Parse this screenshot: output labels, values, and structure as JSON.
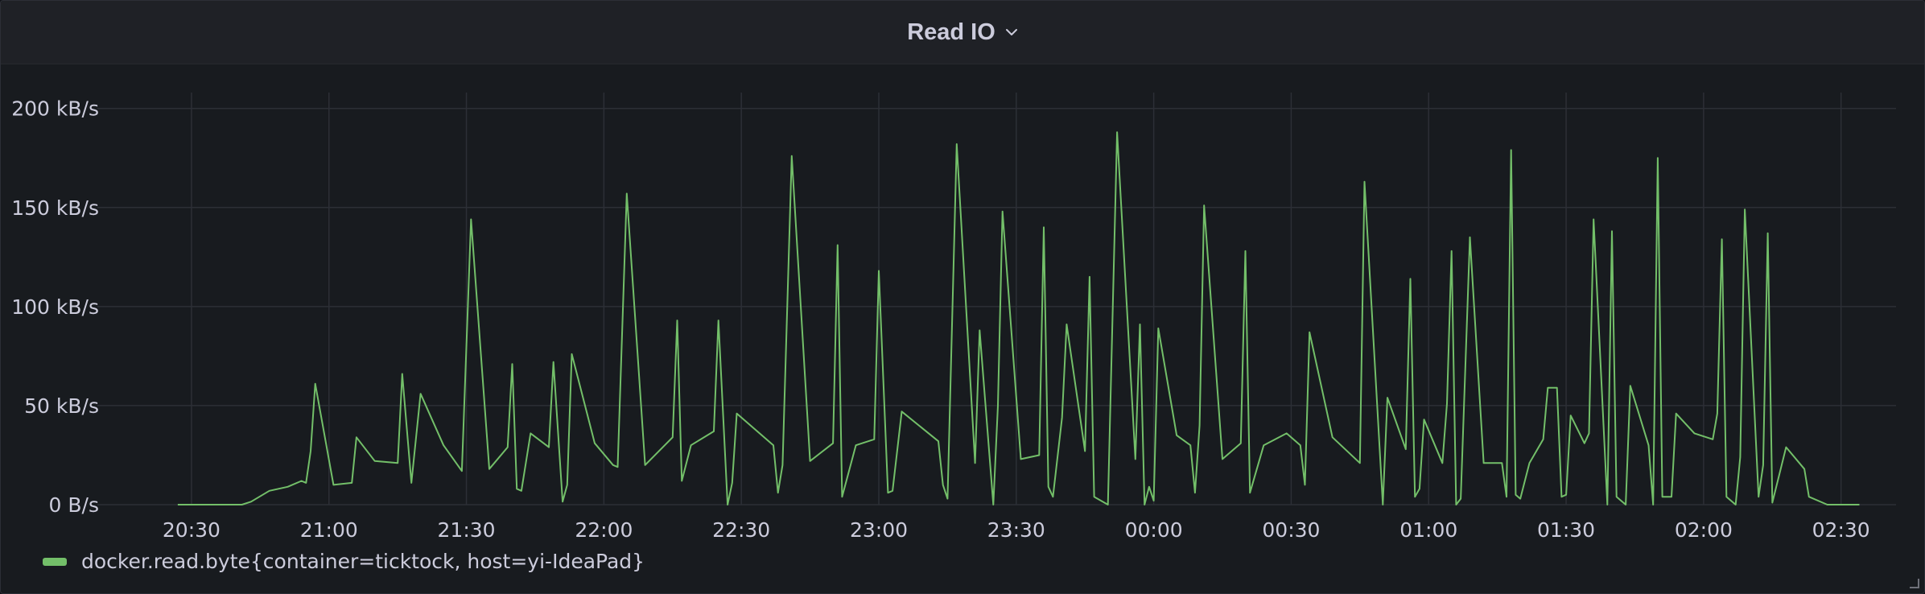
{
  "panel": {
    "title": "Read IO",
    "menu_icon": "chevron-down-icon",
    "colors": {
      "background": "#181b1f",
      "header": "#1f2126",
      "text": "#ccccdc",
      "grid": "#2c2f36",
      "series": "#73bf69"
    }
  },
  "chart_data": {
    "type": "line",
    "title": "Read IO",
    "xlabel": "",
    "ylabel": "",
    "x_unit": "time (HH:MM)",
    "y_unit": "kB/s",
    "xlim": [
      "20:20",
      "02:42"
    ],
    "ylim": [
      0,
      208
    ],
    "grid": true,
    "legend_position": "bottom-left",
    "y_ticks": [
      {
        "value": 0,
        "label": "0 B/s"
      },
      {
        "value": 50,
        "label": "50 kB/s"
      },
      {
        "value": 100,
        "label": "100 kB/s"
      },
      {
        "value": 150,
        "label": "150 kB/s"
      },
      {
        "value": 200,
        "label": "200 kB/s"
      }
    ],
    "x_ticks": [
      "20:30",
      "21:00",
      "21:30",
      "22:00",
      "22:30",
      "23:00",
      "23:30",
      "00:00",
      "00:30",
      "01:00",
      "01:30",
      "02:00",
      "02:30"
    ],
    "series": [
      {
        "name": "docker.read.byte{container=ticktock, host=yi-IdeaPad}",
        "color": "#73bf69",
        "points": [
          [
            "20:27",
            0
          ],
          [
            "20:31",
            0
          ],
          [
            "20:38",
            0
          ],
          [
            "20:41",
            0
          ],
          [
            "20:43",
            1.5
          ],
          [
            "20:47",
            7
          ],
          [
            "20:51",
            9
          ],
          [
            "20:54",
            12
          ],
          [
            "20:55",
            11
          ],
          [
            "20:56",
            27
          ],
          [
            "20:57",
            61
          ],
          [
            "21:01",
            10
          ],
          [
            "21:05",
            11
          ],
          [
            "21:06",
            34
          ],
          [
            "21:10",
            22
          ],
          [
            "21:15",
            21
          ],
          [
            "21:16",
            66
          ],
          [
            "21:18",
            11
          ],
          [
            "21:20",
            56
          ],
          [
            "21:25",
            30
          ],
          [
            "21:29",
            17
          ],
          [
            "21:31",
            144
          ],
          [
            "21:35",
            18
          ],
          [
            "21:39",
            29
          ],
          [
            "21:40",
            71
          ],
          [
            "21:41",
            8
          ],
          [
            "21:42",
            7
          ],
          [
            "21:44",
            36
          ],
          [
            "21:48",
            29
          ],
          [
            "21:49",
            72
          ],
          [
            "21:51",
            1.5
          ],
          [
            "21:52",
            10
          ],
          [
            "21:53",
            76
          ],
          [
            "21:58",
            31
          ],
          [
            "22:02",
            20
          ],
          [
            "22:03",
            19
          ],
          [
            "22:05",
            157
          ],
          [
            "22:09",
            20
          ],
          [
            "22:15",
            34
          ],
          [
            "22:16",
            93
          ],
          [
            "22:17",
            12
          ],
          [
            "22:19",
            30
          ],
          [
            "22:24",
            37
          ],
          [
            "22:25",
            93
          ],
          [
            "22:27",
            0
          ],
          [
            "22:28",
            11
          ],
          [
            "22:29",
            46
          ],
          [
            "22:37",
            30
          ],
          [
            "22:38",
            6
          ],
          [
            "22:39",
            20
          ],
          [
            "22:41",
            176
          ],
          [
            "22:45",
            22
          ],
          [
            "22:50",
            31
          ],
          [
            "22:51",
            131
          ],
          [
            "22:52",
            4
          ],
          [
            "22:55",
            30
          ],
          [
            "22:59",
            33
          ],
          [
            "23:00",
            118
          ],
          [
            "23:02",
            6
          ],
          [
            "23:03",
            7
          ],
          [
            "23:05",
            47
          ],
          [
            "23:13",
            32
          ],
          [
            "23:14",
            10
          ],
          [
            "23:15",
            3
          ],
          [
            "23:17",
            182
          ],
          [
            "23:21",
            21
          ],
          [
            "23:22",
            88
          ],
          [
            "23:25",
            0
          ],
          [
            "23:26",
            50
          ],
          [
            "23:27",
            148
          ],
          [
            "23:31",
            23
          ],
          [
            "23:35",
            25
          ],
          [
            "23:36",
            140
          ],
          [
            "23:37",
            9
          ],
          [
            "23:38",
            4
          ],
          [
            "23:40",
            44
          ],
          [
            "23:41",
            91
          ],
          [
            "23:45",
            27
          ],
          [
            "23:46",
            115
          ],
          [
            "23:47",
            4
          ],
          [
            "23:50",
            0
          ],
          [
            "23:52",
            188
          ],
          [
            "23:56",
            23
          ],
          [
            "23:57",
            91
          ],
          [
            "23:58",
            0
          ],
          [
            "23:59",
            9
          ],
          [
            "24:00",
            2
          ],
          [
            "24:01",
            89
          ],
          [
            "24:05",
            35
          ],
          [
            "24:08",
            30
          ],
          [
            "24:09",
            6
          ],
          [
            "24:10",
            40
          ],
          [
            "24:11",
            151
          ],
          [
            "24:15",
            23
          ],
          [
            "24:19",
            31
          ],
          [
            "24:20",
            128
          ],
          [
            "24:21",
            6
          ],
          [
            "24:24",
            30
          ],
          [
            "24:29",
            36
          ],
          [
            "24:32",
            30
          ],
          [
            "24:33",
            10
          ],
          [
            "24:34",
            87
          ],
          [
            "24:39",
            34
          ],
          [
            "24:45",
            21
          ],
          [
            "24:46",
            163
          ],
          [
            "24:50",
            0
          ],
          [
            "24:51",
            54
          ],
          [
            "24:55",
            28
          ],
          [
            "24:56",
            114
          ],
          [
            "24:57",
            4
          ],
          [
            "24:58",
            8
          ],
          [
            "24:59",
            43
          ],
          [
            "25:03",
            21
          ],
          [
            "25:04",
            51
          ],
          [
            "25:05",
            128
          ],
          [
            "25:06",
            0
          ],
          [
            "25:07",
            3
          ],
          [
            "25:09",
            135
          ],
          [
            "25:12",
            21
          ],
          [
            "25:16",
            21
          ],
          [
            "25:17",
            4
          ],
          [
            "25:18",
            179
          ],
          [
            "25:19",
            5
          ],
          [
            "25:20",
            3
          ],
          [
            "25:22",
            21
          ],
          [
            "25:25",
            33
          ],
          [
            "25:26",
            59
          ],
          [
            "25:28",
            59
          ],
          [
            "25:29",
            4
          ],
          [
            "25:30",
            5
          ],
          [
            "25:31",
            45
          ],
          [
            "25:34",
            31
          ],
          [
            "25:35",
            36
          ],
          [
            "25:36",
            144
          ],
          [
            "25:39",
            0
          ],
          [
            "25:40",
            138
          ],
          [
            "25:41",
            4
          ],
          [
            "25:43",
            0
          ],
          [
            "25:44",
            60
          ],
          [
            "25:48",
            30
          ],
          [
            "25:49",
            0
          ],
          [
            "25:50",
            175
          ],
          [
            "25:51",
            4
          ],
          [
            "25:53",
            4
          ],
          [
            "25:54",
            46
          ],
          [
            "25:58",
            36
          ],
          [
            "26:02",
            33
          ],
          [
            "26:03",
            46
          ],
          [
            "26:04",
            134
          ],
          [
            "26:05",
            4
          ],
          [
            "26:07",
            0
          ],
          [
            "26:08",
            24
          ],
          [
            "26:09",
            149
          ],
          [
            "26:12",
            4
          ],
          [
            "26:13",
            20
          ],
          [
            "26:14",
            137
          ],
          [
            "26:15",
            1
          ],
          [
            "26:18",
            29
          ],
          [
            "26:22",
            18
          ],
          [
            "26:23",
            4
          ],
          [
            "26:27",
            0
          ],
          [
            "26:31",
            0
          ],
          [
            "26:34",
            0
          ]
        ]
      }
    ]
  },
  "legend": {
    "label": "docker.read.byte{container=ticktock, host=yi-IdeaPad}",
    "color": "#73bf69"
  }
}
